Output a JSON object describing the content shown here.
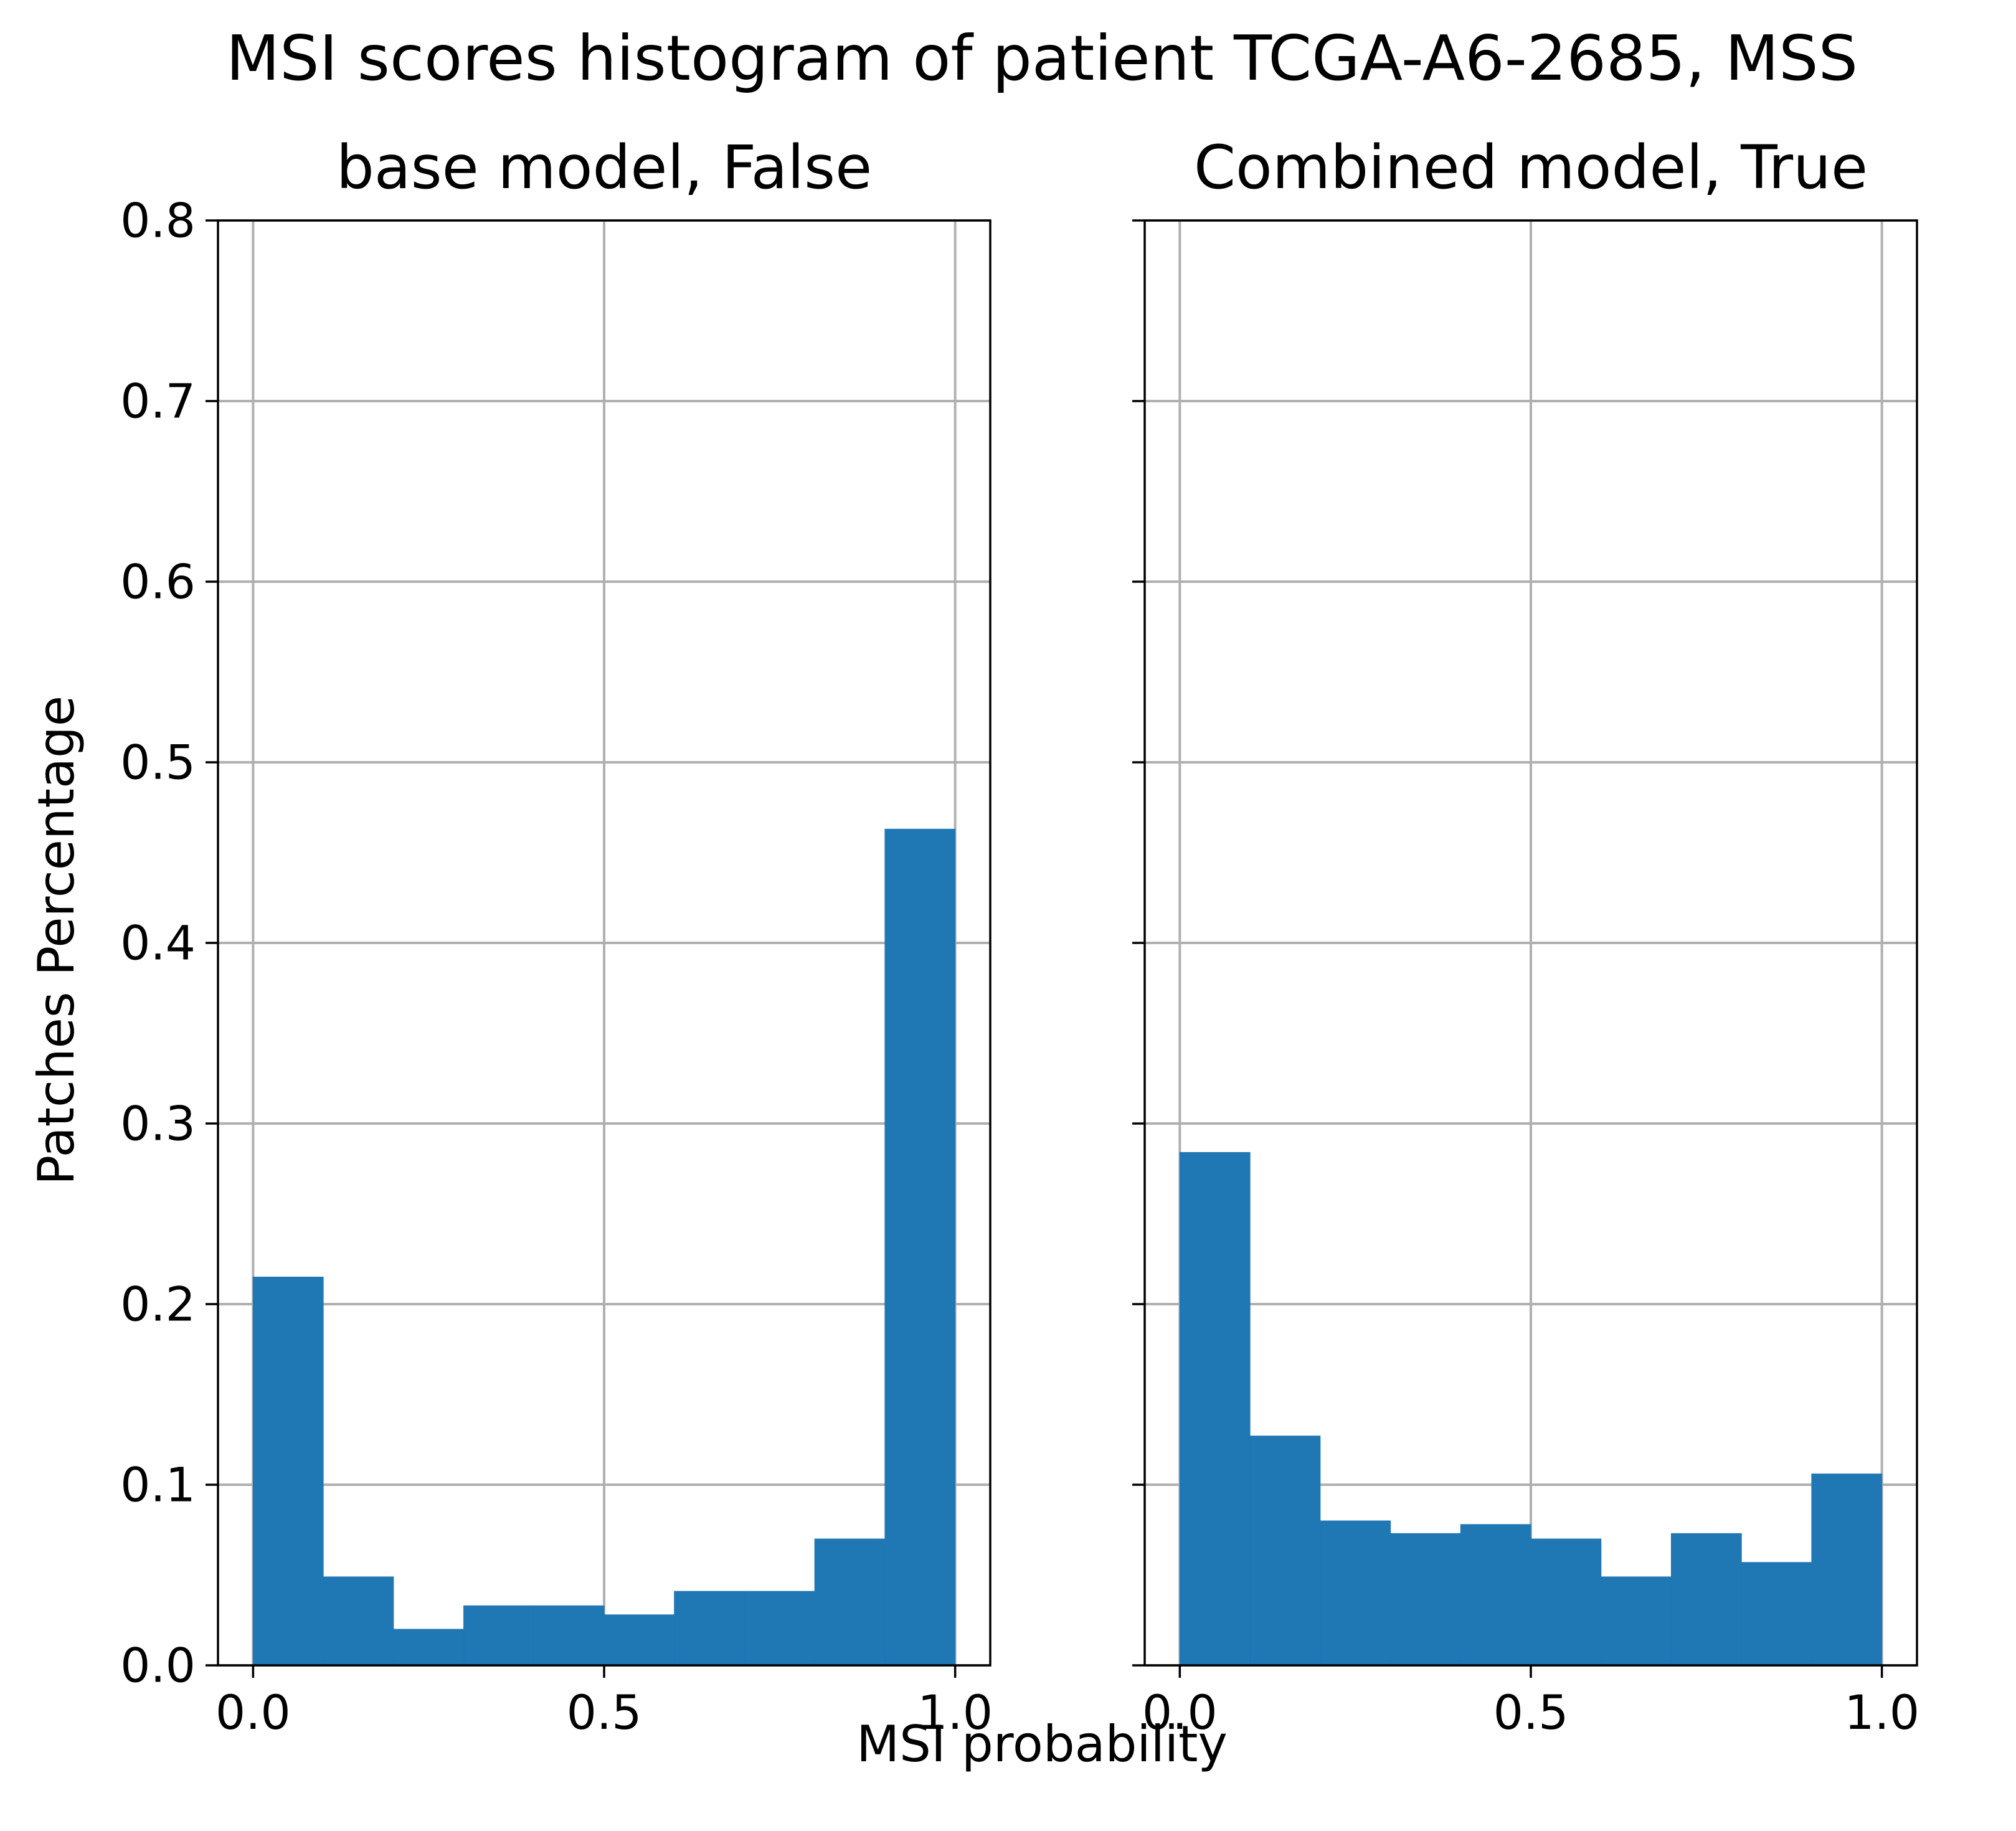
{
  "figure": {
    "suptitle": "MSI scores histogram of patient TCGA-A6-2685, MSS",
    "xlabel": "MSI probability",
    "ylabel": "Patches Percentage"
  },
  "chart_data": [
    {
      "type": "bar",
      "title": "base model, False",
      "xlabel": "MSI probability",
      "ylabel": "Patches Percentage",
      "bin_edges": [
        0.0,
        0.1,
        0.2,
        0.3,
        0.4,
        0.5,
        0.6,
        0.7,
        0.8,
        0.9,
        1.0
      ],
      "values": [
        0.215,
        0.049,
        0.02,
        0.033,
        0.033,
        0.028,
        0.041,
        0.041,
        0.07,
        0.463
      ],
      "xlim": [
        -0.05,
        1.05
      ],
      "ylim": [
        0.0,
        0.8
      ],
      "xticks": [
        0.0,
        0.5,
        1.0
      ],
      "xtick_labels": [
        "0.0",
        "0.5",
        "1.0"
      ],
      "yticks": [
        0.0,
        0.1,
        0.2,
        0.3,
        0.4,
        0.5,
        0.6,
        0.7,
        0.8
      ],
      "ytick_labels": [
        "0.0",
        "0.1",
        "0.2",
        "0.3",
        "0.4",
        "0.5",
        "0.6",
        "0.7",
        "0.8"
      ],
      "grid": true,
      "color": "#1f77b4"
    },
    {
      "type": "bar",
      "title": "Combined model, True",
      "xlabel": "MSI probability",
      "ylabel": "Patches Percentage",
      "bin_edges": [
        0.0,
        0.1,
        0.2,
        0.3,
        0.4,
        0.5,
        0.6,
        0.7,
        0.8,
        0.9,
        1.0
      ],
      "values": [
        0.284,
        0.127,
        0.08,
        0.073,
        0.078,
        0.07,
        0.049,
        0.073,
        0.057,
        0.106
      ],
      "xlim": [
        -0.05,
        1.05
      ],
      "ylim": [
        0.0,
        0.8
      ],
      "xticks": [
        0.0,
        0.5,
        1.0
      ],
      "xtick_labels": [
        "0.0",
        "0.5",
        "1.0"
      ],
      "yticks": [
        0.0,
        0.1,
        0.2,
        0.3,
        0.4,
        0.5,
        0.6,
        0.7,
        0.8
      ],
      "ytick_labels": [],
      "grid": true,
      "color": "#1f77b4"
    }
  ]
}
